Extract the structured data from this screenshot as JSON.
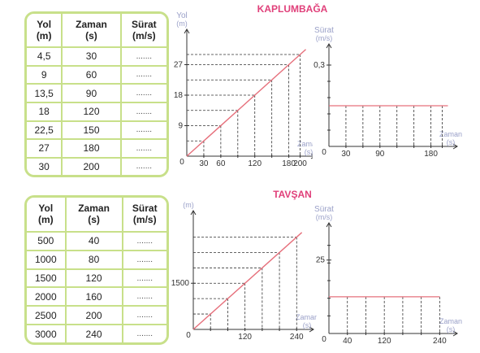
{
  "colors": {
    "border": "#c8e08a",
    "line": "#e6707c",
    "axis": "#333333",
    "label": "#9aa0c8",
    "title": "#e0407a"
  },
  "tables": [
    {
      "headers": [
        [
          "Yol",
          "(m)"
        ],
        [
          "Zaman",
          "(s)"
        ],
        [
          "Sürat",
          "(m/s)"
        ]
      ],
      "rows": [
        [
          "4,5",
          "30",
          "......."
        ],
        [
          "9",
          "60",
          "......."
        ],
        [
          "13,5",
          "90",
          "......."
        ],
        [
          "18",
          "120",
          "......."
        ],
        [
          "22,5",
          "150",
          "......."
        ],
        [
          "27",
          "180",
          "......."
        ],
        [
          "30",
          "200",
          "......."
        ]
      ]
    },
    {
      "headers": [
        [
          "Yol",
          "(m)"
        ],
        [
          "Zaman",
          "(s)"
        ],
        [
          "Sürat",
          "(m/s)"
        ]
      ],
      "rows": [
        [
          "500",
          "40",
          "......."
        ],
        [
          "1000",
          "80",
          "......."
        ],
        [
          "1500",
          "120",
          "......."
        ],
        [
          "2000",
          "160",
          "......."
        ],
        [
          "2500",
          "200",
          "......."
        ],
        [
          "3000",
          "240",
          "......."
        ]
      ]
    }
  ],
  "titles": [
    "KAPLUMBAĞA",
    "TAVŞAN"
  ],
  "chart_data": [
    {
      "type": "line",
      "title": "KAPLUMBAĞA",
      "ylabel": [
        "Yol",
        "(m)"
      ],
      "xlabel": [
        "Zaman",
        "(s)"
      ],
      "xticks": [
        "30",
        "60",
        "120",
        "180",
        "200"
      ],
      "yticks": [
        "9",
        "18",
        "27"
      ],
      "x": [
        0,
        30,
        60,
        90,
        120,
        150,
        180,
        200
      ],
      "y": [
        0,
        4.5,
        9,
        13.5,
        18,
        22.5,
        27,
        30
      ],
      "xlim": [
        0,
        215
      ],
      "ylim": [
        0,
        36
      ]
    },
    {
      "type": "line",
      "ylabel": [
        "Sürat",
        "(m/s)"
      ],
      "xlabel": [
        "Zaman",
        "(s)"
      ],
      "xticks": [
        "30",
        "90",
        "180"
      ],
      "yticks": [
        "0,3"
      ],
      "x": [
        0,
        210
      ],
      "y": [
        0.15,
        0.15
      ],
      "xlim": [
        0,
        215
      ],
      "ylim": [
        0,
        0.36
      ]
    },
    {
      "type": "line",
      "title": "TAVŞAN",
      "ylabel": [
        "Yol",
        "(m)"
      ],
      "xlabel": [
        "Zaman",
        "(s)"
      ],
      "xticks": [
        "120",
        "240"
      ],
      "yticks": [
        "1500"
      ],
      "x": [
        0,
        40,
        80,
        120,
        160,
        200,
        240
      ],
      "y": [
        0,
        500,
        1000,
        1500,
        2000,
        2500,
        3000
      ],
      "xlim": [
        0,
        264
      ],
      "ylim": [
        0,
        3700
      ]
    },
    {
      "type": "line",
      "ylabel": [
        "Sürat",
        "(m/s)"
      ],
      "xlabel": [
        "Zaman",
        "(s)"
      ],
      "xticks": [
        "40",
        "120",
        "240"
      ],
      "yticks": [
        "25"
      ],
      "x": [
        0,
        240
      ],
      "y": [
        12.5,
        12.5
      ],
      "xlim": [
        0,
        264
      ],
      "ylim": [
        0,
        36
      ]
    }
  ]
}
